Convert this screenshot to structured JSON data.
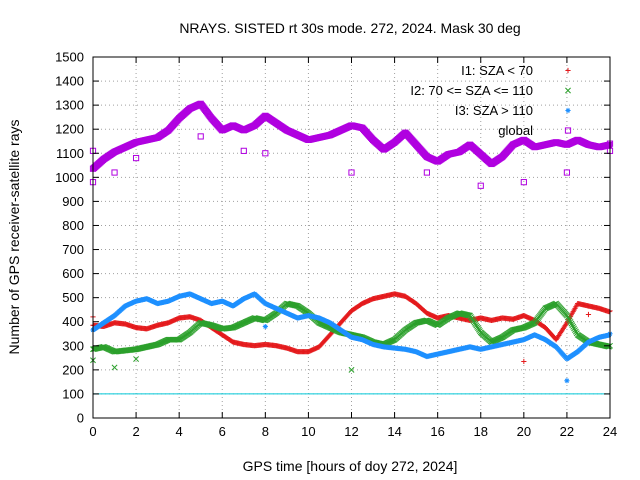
{
  "chart_data": {
    "type": "scatter",
    "title": "NRAYS. SISTED rt 30s mode. 272, 2024. Mask 30 deg",
    "xlabel": "GPS time [hours of doy 272, 2024]",
    "ylabel": "Number of GPS receiver-satellite rays",
    "xlim": [
      0,
      24
    ],
    "ylim": [
      0,
      1500
    ],
    "x_ticks": [
      "0",
      "2",
      "4",
      "6",
      "8",
      "10",
      "12",
      "14",
      "16",
      "18",
      "20",
      "22",
      "24"
    ],
    "y_ticks": [
      "0",
      "100",
      "200",
      "300",
      "400",
      "500",
      "600",
      "700",
      "800",
      "900",
      "1000",
      "1100",
      "1200",
      "1300",
      "1400",
      "1500"
    ],
    "grid": true,
    "legend_position": "top-right",
    "reference_line": {
      "y": 100,
      "color": "#00c8d8"
    },
    "series": [
      {
        "name": "I1: SZA < 70",
        "marker": "+",
        "color": "#e41a1c",
        "x": [
          0,
          0.5,
          1,
          1.5,
          2,
          2.5,
          3,
          3.5,
          4,
          4.5,
          5,
          5.5,
          6,
          6.5,
          7,
          7.5,
          8,
          8.5,
          9,
          9.5,
          10,
          10.5,
          11,
          11.5,
          12,
          12.5,
          13,
          13.5,
          14,
          14.5,
          15,
          15.5,
          16,
          16.5,
          17,
          17.5,
          18,
          18.5,
          19,
          19.5,
          20,
          20.5,
          21,
          21.5,
          22,
          22.5,
          23,
          23.5,
          24
        ],
        "values": [
          390,
          385,
          400,
          395,
          380,
          375,
          390,
          400,
          420,
          425,
          410,
          380,
          350,
          320,
          310,
          305,
          310,
          305,
          295,
          280,
          280,
          300,
          350,
          400,
          450,
          480,
          500,
          510,
          520,
          510,
          480,
          440,
          420,
          430,
          420,
          410,
          420,
          410,
          420,
          415,
          430,
          410,
          380,
          330,
          400,
          480,
          470,
          460,
          445
        ],
        "outliers": [
          {
            "x": 0,
            "y": 420
          },
          {
            "x": 20,
            "y": 235
          },
          {
            "x": 23,
            "y": 430
          }
        ]
      },
      {
        "name": "I2: 70 <= SZA <= 110",
        "marker": "x",
        "color": "#2ca02c",
        "x": [
          0,
          0.5,
          1,
          1.5,
          2,
          2.5,
          3,
          3.5,
          4,
          4.5,
          5,
          5.5,
          6,
          6.5,
          7,
          7.5,
          8,
          8.5,
          9,
          9.5,
          10,
          10.5,
          11,
          11.5,
          12,
          12.5,
          13,
          13.5,
          14,
          14.5,
          15,
          15.5,
          16,
          16.5,
          17,
          17.5,
          18,
          18.5,
          19,
          19.5,
          20,
          20.5,
          21,
          21.5,
          22,
          22.5,
          23,
          23.5,
          24
        ],
        "values": [
          290,
          300,
          280,
          285,
          290,
          300,
          310,
          330,
          330,
          360,
          400,
          390,
          375,
          380,
          400,
          420,
          410,
          440,
          480,
          470,
          440,
          400,
          380,
          360,
          350,
          340,
          320,
          310,
          330,
          370,
          400,
          410,
          390,
          420,
          440,
          430,
          360,
          320,
          340,
          370,
          380,
          400,
          460,
          480,
          430,
          350,
          320,
          310,
          300
        ],
        "outliers": [
          {
            "x": 0,
            "y": 240
          },
          {
            "x": 1,
            "y": 210
          },
          {
            "x": 2,
            "y": 245
          },
          {
            "x": 12,
            "y": 200
          }
        ]
      },
      {
        "name": "I3: SZA > 110",
        "marker": "*",
        "color": "#1e90ff",
        "x": [
          0,
          0.5,
          1,
          1.5,
          2,
          2.5,
          3,
          3.5,
          4,
          4.5,
          5,
          5.5,
          6,
          6.5,
          7,
          7.5,
          8,
          8.5,
          9,
          9.5,
          10,
          10.5,
          11,
          11.5,
          12,
          12.5,
          13,
          13.5,
          14,
          14.5,
          15,
          15.5,
          16,
          16.5,
          17,
          17.5,
          18,
          18.5,
          19,
          19.5,
          20,
          20.5,
          21,
          21.5,
          22,
          22.5,
          23,
          23.5,
          24
        ],
        "values": [
          370,
          400,
          430,
          470,
          490,
          500,
          480,
          490,
          510,
          520,
          500,
          480,
          490,
          470,
          500,
          520,
          480,
          460,
          440,
          420,
          430,
          420,
          400,
          370,
          340,
          330,
          310,
          300,
          295,
          290,
          280,
          260,
          270,
          280,
          290,
          300,
          290,
          300,
          310,
          320,
          330,
          350,
          330,
          300,
          250,
          280,
          320,
          340,
          350
        ],
        "outliers": [
          {
            "x": 22,
            "y": 155
          },
          {
            "x": 8,
            "y": 380
          }
        ]
      },
      {
        "name": "global",
        "marker": "square",
        "color": "#b000e0",
        "x": [
          0,
          0.5,
          1,
          1.5,
          2,
          2.5,
          3,
          3.5,
          4,
          4.5,
          5,
          5.5,
          6,
          6.5,
          7,
          7.5,
          8,
          8.5,
          9,
          9.5,
          10,
          10.5,
          11,
          11.5,
          12,
          12.5,
          13,
          13.5,
          14,
          14.5,
          15,
          15.5,
          16,
          16.5,
          17,
          17.5,
          18,
          18.5,
          19,
          19.5,
          20,
          20.5,
          21,
          21.5,
          22,
          22.5,
          23,
          23.5,
          24
        ],
        "values": [
          1040,
          1080,
          1110,
          1130,
          1150,
          1160,
          1170,
          1200,
          1250,
          1290,
          1310,
          1250,
          1200,
          1220,
          1200,
          1220,
          1260,
          1230,
          1200,
          1180,
          1160,
          1170,
          1180,
          1200,
          1220,
          1210,
          1160,
          1120,
          1150,
          1190,
          1140,
          1090,
          1070,
          1100,
          1110,
          1140,
          1100,
          1060,
          1090,
          1140,
          1160,
          1130,
          1140,
          1150,
          1140,
          1160,
          1140,
          1130,
          1140
        ],
        "outliers": [
          {
            "x": 0,
            "y": 980
          },
          {
            "x": 0,
            "y": 1110
          },
          {
            "x": 1,
            "y": 1020
          },
          {
            "x": 2,
            "y": 1080
          },
          {
            "x": 5,
            "y": 1170
          },
          {
            "x": 7,
            "y": 1110
          },
          {
            "x": 8,
            "y": 1100
          },
          {
            "x": 12,
            "y": 1020
          },
          {
            "x": 15.5,
            "y": 1020
          },
          {
            "x": 18,
            "y": 965
          },
          {
            "x": 20,
            "y": 980
          },
          {
            "x": 22,
            "y": 1020
          },
          {
            "x": 24,
            "y": 1110
          }
        ]
      }
    ]
  }
}
